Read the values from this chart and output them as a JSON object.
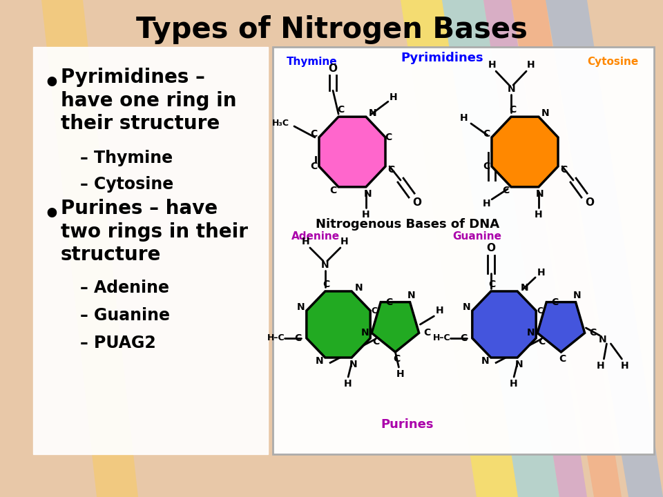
{
  "title": "Types of Nitrogen Bases",
  "title_fontsize": 30,
  "title_fontweight": "bold",
  "background_color": "#e8c8a8",
  "bullet1_main": "Pyrimidines – have one ring in their structure",
  "sub1_1": "– Thymine",
  "sub1_2": "– Cytosine",
  "bullet2_main": "Purines – have two rings in their structure",
  "sub2_1": "– Adenine",
  "sub2_2": "– Guanine",
  "sub2_3": "– PUAG2",
  "thymine_color": "#ff66cc",
  "cytosine_color": "#ff8800",
  "adenine_color": "#22aa22",
  "guanine_color": "#4455dd",
  "pyrimidines_label_color": "#0000ff",
  "purines_label_color": "#aa00aa",
  "adenine_label_color": "#aa00aa",
  "guanine_label_color": "#aa00aa",
  "thymine_label_color": "#0000ff",
  "cytosine_label_color": "#ff8800",
  "center_label": "Nitrogenous Bases of DNA",
  "purines_bottom_label": "Purines"
}
